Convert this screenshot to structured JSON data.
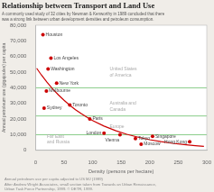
{
  "chart_data": {
    "type": "scatter",
    "title": "Relationship between Transport and Land Use",
    "subtitle": "A commonly used study of 32 cities by Newman & Kenworthy in 1989 concluded that there\nwas a strong link between urban development densities and petroleum consumption.",
    "footnote": "Annual petroleum use per capita adjusted to US MJ (1989)\nAfter Andrew Wright Associates, small section taken from Towards an Urban Renaissance,\nUrban Task Force Partnership, 1999. © DETR, 1999.",
    "xlabel": "Density (persons per hectare)",
    "ylabel": "Annual petroleum use (gigajoules) per capita",
    "xlim": [
      0,
      300
    ],
    "xticks": [
      0,
      50,
      100,
      150,
      200,
      250,
      300
    ],
    "ylim": [
      0,
      80000
    ],
    "yticks": [
      0,
      {
        "value": 10000,
        "label": "10,000"
      },
      {
        "value": 20000,
        "label": "20,000"
      },
      {
        "value": 30000,
        "label": "30,000"
      },
      {
        "value": 40000,
        "label": "40,000"
      },
      {
        "value": 50000,
        "label": "50,000"
      },
      {
        "value": 60000,
        "label": "60,000"
      },
      {
        "value": 70000,
        "label": "70,000"
      },
      {
        "value": 80000,
        "label": "80,000"
      }
    ],
    "grid": false,
    "series": [
      {
        "type": "hline",
        "color": "#88cc88",
        "values": [
          40000,
          22000,
          10000
        ]
      },
      {
        "type": "line",
        "color": "#cc0000",
        "x": [
          2,
          10,
          20,
          30,
          40,
          50,
          60,
          70,
          80,
          90,
          100,
          120,
          140,
          160,
          180,
          200,
          220,
          240,
          260,
          280,
          295
        ],
        "values": [
          52468,
          48315,
          43583,
          39315,
          35464,
          31991,
          28858,
          26032,
          23482,
          21182,
          19107,
          15549,
          12651,
          10294,
          8377,
          6816,
          5547,
          4513,
          3672,
          2988,
          2561
        ]
      },
      {
        "type": "scatter",
        "color": "#cc0000",
        "x": [
          13,
          27,
          22,
          37,
          19,
          15,
          60,
          95,
          120,
          148,
          175,
          185,
          205,
          270
        ],
        "values": [
          74000,
          59000,
          52000,
          43000,
          38000,
          27000,
          29000,
          20000,
          11000,
          10000,
          7500,
          4000,
          9000,
          5500
        ],
        "point_labels": [
          "Houston",
          "Los Angeles",
          "Washington",
          "New York",
          "Melbourne",
          "Sydney",
          "Toronto",
          "Paris",
          "London",
          "Vienna",
          "Tokyo",
          "Moscow",
          "Singapore",
          "Hong Kong"
        ]
      }
    ],
    "annotations": [
      {
        "text": "United States\nof America",
        "x": 130,
        "y": 50000,
        "color": "#aaaaaa"
      },
      {
        "text": "Australia and\nCanada",
        "x": 130,
        "y": 28000,
        "color": "#aaaaaa"
      },
      {
        "text": "Europe",
        "x": 130,
        "y": 15000,
        "color": "#aaaaaa"
      },
      {
        "text": "Far East\nand Russia",
        "x": 20,
        "y": 7000,
        "color": "#aaaaaa"
      }
    ]
  }
}
